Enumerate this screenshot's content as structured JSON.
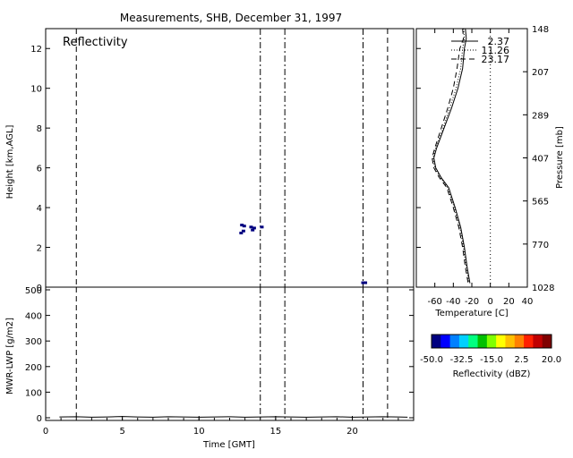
{
  "title": "Measurements, SHB, December 31, 1997",
  "chart_data": [
    {
      "id": "reflectivity",
      "type": "scatter",
      "panel_label": "Reflectivity",
      "ylabel": "Height [km,AGL]",
      "xlim": [
        0,
        24
      ],
      "ylim": [
        0,
        13
      ],
      "yticks": [
        0,
        2,
        4,
        6,
        8,
        10,
        12
      ],
      "vlines": [
        {
          "x": 2.0,
          "style": "dashed"
        },
        {
          "x": 14.0,
          "style": "dashdot"
        },
        {
          "x": 15.6,
          "style": "dashdot"
        },
        {
          "x": 20.7,
          "style": "dashdot"
        },
        {
          "x": 22.3,
          "style": "dashed"
        }
      ],
      "echoes": [
        {
          "x": 12.8,
          "y": 3.1,
          "dbz": -48
        },
        {
          "x": 12.95,
          "y": 3.05,
          "dbz": -48
        },
        {
          "x": 12.9,
          "y": 2.8,
          "dbz": -50
        },
        {
          "x": 12.75,
          "y": 2.7,
          "dbz": -50
        },
        {
          "x": 13.4,
          "y": 3.0,
          "dbz": -48
        },
        {
          "x": 13.6,
          "y": 2.95,
          "dbz": -46
        },
        {
          "x": 13.5,
          "y": 2.85,
          "dbz": -50
        },
        {
          "x": 14.1,
          "y": 3.0,
          "dbz": -48
        },
        {
          "x": 20.7,
          "y": 0.2,
          "dbz": -48
        },
        {
          "x": 20.85,
          "y": 0.2,
          "dbz": -46
        }
      ]
    },
    {
      "id": "sounding",
      "type": "line",
      "xlabel": "Temperature [C]",
      "ylabel": "Pressure [mb]",
      "xlim": [
        -80,
        40
      ],
      "xticks": [
        -60,
        -40,
        -20,
        0,
        20,
        40
      ],
      "yticks": [
        "148",
        "207",
        "289",
        "407",
        "565",
        "770",
        "1028"
      ],
      "legend": [
        "2.37",
        "11.26",
        "23.17"
      ],
      "series": [
        {
          "style": "solid",
          "x": [
            -27,
            -26,
            -28,
            -30,
            -35,
            -42,
            -50,
            -58,
            -61,
            -59,
            -53,
            -45,
            -38,
            -32,
            -28,
            -25,
            -22
          ],
          "y": [
            13,
            12.5,
            12,
            11,
            10,
            9,
            8,
            7,
            6.5,
            6,
            5.5,
            5,
            4,
            3,
            2,
            1,
            0.2
          ]
        },
        {
          "style": "dotted",
          "x": [
            -29,
            -28,
            -30,
            -32,
            -37,
            -44,
            -51,
            -59,
            -62,
            -60,
            -54,
            -46,
            -39,
            -33,
            -29,
            -26,
            -23
          ],
          "y": [
            13,
            12.5,
            12,
            11,
            10,
            9,
            8,
            7,
            6.5,
            6,
            5.5,
            5,
            4,
            3,
            2,
            1,
            0.2
          ]
        },
        {
          "style": "dashed",
          "x": [
            -30,
            -29,
            -33,
            -36,
            -40,
            -46,
            -53,
            -60,
            -63,
            -61,
            -55,
            -47,
            -40,
            -34,
            -30,
            -27,
            -24
          ],
          "y": [
            13,
            12.5,
            12,
            11,
            10,
            9,
            8,
            7,
            6.5,
            6,
            5.5,
            5,
            4,
            3,
            2,
            1,
            0.2
          ]
        }
      ],
      "zero_line": 0
    },
    {
      "id": "lwp",
      "type": "line",
      "xlabel": "Time [GMT]",
      "ylabel": "MWR-LWP [g/m2]",
      "xlim": [
        0,
        24
      ],
      "ylim": [
        0,
        500
      ],
      "xticks": [
        0,
        5,
        10,
        15,
        20
      ],
      "yticks": [
        0,
        100,
        200,
        300,
        400,
        500
      ],
      "series": [
        {
          "x": [
            0.9,
            2,
            3,
            4,
            5,
            6,
            7,
            8,
            9,
            10,
            11,
            12,
            13,
            14,
            15,
            16,
            17,
            18,
            19,
            20,
            21,
            22,
            23,
            23.6
          ],
          "y": [
            3,
            4,
            2,
            3,
            5,
            3,
            2,
            4,
            3,
            2,
            3,
            4,
            2,
            3,
            4,
            3,
            2,
            3,
            4,
            2,
            3,
            4,
            3,
            2
          ]
        }
      ]
    },
    {
      "id": "colorbar",
      "type": "heatmap",
      "xlabel": "Reflectivity (dBZ)",
      "ticks": [
        "-50.0",
        "-32.5",
        "-15.0",
        "2.5",
        "20.0"
      ],
      "colors": [
        "#000080",
        "#0000ff",
        "#0080ff",
        "#00d0ff",
        "#00ff80",
        "#00c000",
        "#80ff00",
        "#ffff00",
        "#ffc000",
        "#ff8000",
        "#ff2000",
        "#c00000",
        "#800000"
      ]
    }
  ]
}
